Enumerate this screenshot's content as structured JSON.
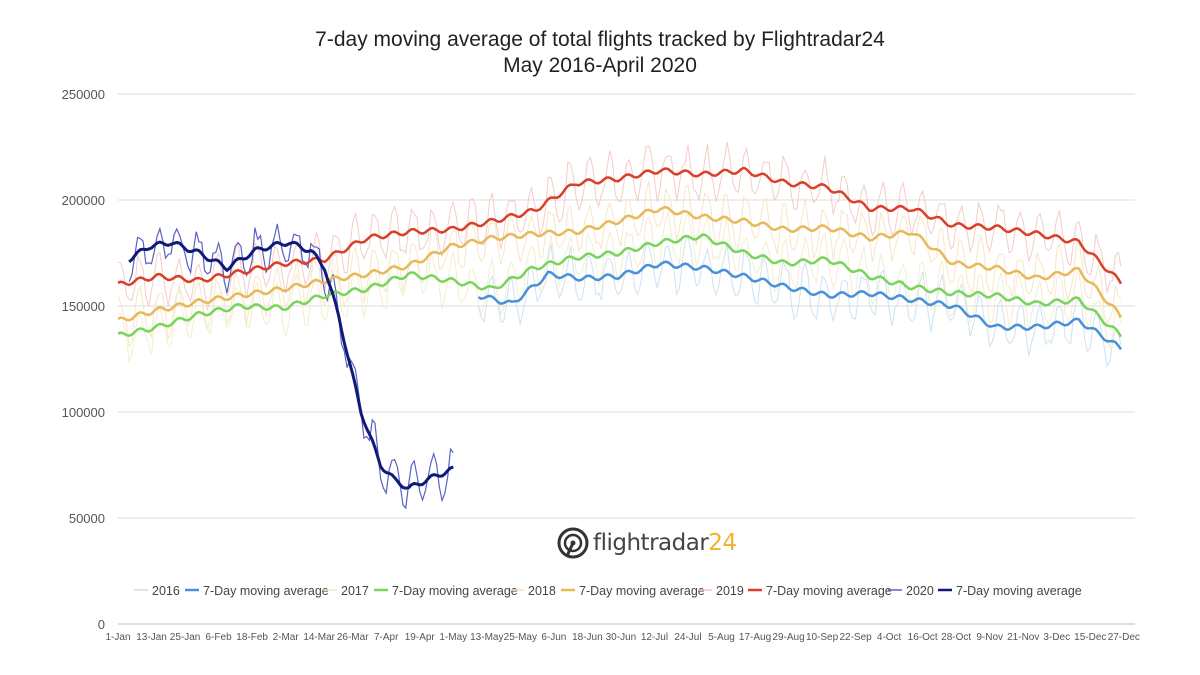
{
  "chart_data": {
    "type": "line",
    "title": "7-day moving average of total flights tracked by Flightradar24",
    "subtitle": "May 2016-April 2020",
    "xlabel": "",
    "ylabel": "",
    "ylim": [
      0,
      250000
    ],
    "yticks": [
      0,
      50000,
      100000,
      150000,
      200000,
      250000
    ],
    "xtick_labels": [
      "1-Jan",
      "13-Jan",
      "25-Jan",
      "6-Feb",
      "18-Feb",
      "2-Mar",
      "14-Mar",
      "26-Mar",
      "7-Apr",
      "19-Apr",
      "1-May",
      "13-May",
      "25-May",
      "6-Jun",
      "18-Jun",
      "30-Jun",
      "12-Jul",
      "24-Jul",
      "5-Aug",
      "17-Aug",
      "29-Aug",
      "10-Sep",
      "22-Sep",
      "4-Oct",
      "16-Oct",
      "28-Oct",
      "9-Nov",
      "21-Nov",
      "3-Dec",
      "15-Dec",
      "27-Dec"
    ],
    "grid": true,
    "legend_position": "bottom",
    "legend": [
      "2016",
      "7-Day moving average",
      "2017",
      "7-Day moving average",
      "2018",
      "7-Day moving average",
      "2019",
      "7-Day moving average",
      "2020",
      "7-Day moving average"
    ],
    "series_colors": {
      "2016": "#c9dfef",
      "ma2016": "#4a90d9",
      "2017": "#f2ecc8",
      "ma2017": "#79d45e",
      "2018": "#f6e3c0",
      "ma2018": "#e8b85a",
      "2019": "#f4c6c0",
      "ma2019": "#d9402a",
      "2020": "#5a62c4",
      "ma2020": "#101a78"
    },
    "series": [
      {
        "key": "ma2016",
        "name": "7-Day moving average",
        "x": [
          130,
          142,
          155,
          167,
          180,
          195,
          210,
          225,
          240,
          255,
          270,
          285,
          300,
          315,
          330,
          345,
          360
        ],
        "values": [
          155000,
          151000,
          165000,
          163000,
          164000,
          170000,
          168000,
          164000,
          159000,
          155000,
          156000,
          153000,
          150000,
          140000,
          140000,
          143000,
          130000
        ]
      },
      {
        "key": "ma2017",
        "name": "7-Day moving average",
        "x": [
          1,
          15,
          30,
          45,
          60,
          75,
          90,
          105,
          120,
          135,
          150,
          165,
          180,
          195,
          210,
          225,
          240,
          255,
          270,
          285,
          300,
          315,
          330,
          345,
          360
        ],
        "values": [
          136000,
          140000,
          146000,
          150000,
          149000,
          155000,
          158000,
          165000,
          162000,
          158000,
          168000,
          173000,
          175000,
          180000,
          183000,
          175000,
          170000,
          172000,
          164000,
          159000,
          156000,
          155000,
          151000,
          153000,
          136000
        ]
      },
      {
        "key": "ma2018",
        "name": "7-Day moving average",
        "x": [
          1,
          15,
          30,
          45,
          60,
          75,
          90,
          105,
          120,
          135,
          150,
          165,
          180,
          195,
          210,
          225,
          240,
          255,
          270,
          285,
          300,
          315,
          330,
          345,
          360
        ],
        "values": [
          143000,
          148000,
          152000,
          155000,
          158000,
          162000,
          165000,
          169000,
          178000,
          182000,
          184000,
          185000,
          190000,
          196000,
          192000,
          190000,
          186000,
          187000,
          182000,
          185000,
          170000,
          168000,
          163000,
          167000,
          145000
        ]
      },
      {
        "key": "ma2019",
        "name": "7-Day moving average",
        "x": [
          1,
          15,
          30,
          45,
          60,
          75,
          90,
          105,
          120,
          135,
          150,
          165,
          180,
          195,
          210,
          225,
          240,
          255,
          270,
          285,
          300,
          315,
          330,
          345,
          360
        ],
        "values": [
          160000,
          164000,
          162000,
          166000,
          170000,
          172000,
          182000,
          185000,
          186000,
          190000,
          195000,
          208000,
          210000,
          214000,
          212000,
          214000,
          208000,
          206000,
          196000,
          196000,
          188000,
          187000,
          184000,
          180000,
          161000
        ]
      },
      {
        "key": "ma2020",
        "name": "7-Day moving average",
        "x": [
          5,
          12,
          20,
          30,
          40,
          50,
          55,
          62,
          70,
          75,
          80,
          88,
          95,
          100,
          105,
          110,
          115,
          121
        ],
        "values": [
          172000,
          178000,
          180000,
          175000,
          168000,
          176000,
          178000,
          180000,
          176000,
          168000,
          145000,
          100000,
          75000,
          68000,
          64000,
          67000,
          70000,
          73000
        ]
      }
    ]
  },
  "logo": {
    "text": "flightradar",
    "num": "24"
  }
}
